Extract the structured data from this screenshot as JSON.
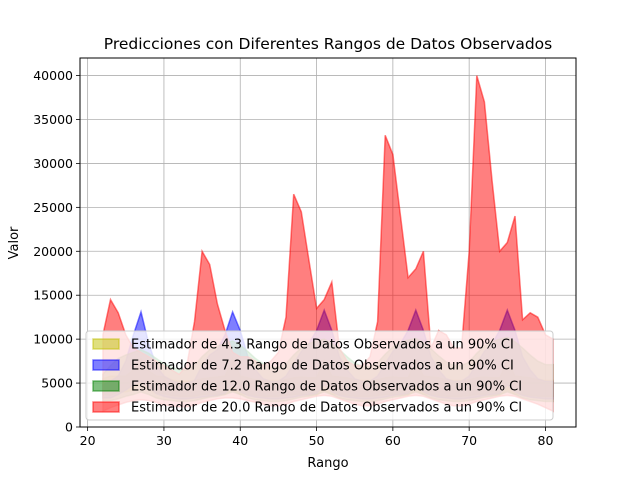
{
  "chart_data": {
    "type": "area",
    "title": "Predicciones con Diferentes Rangos de Datos Observados",
    "xlabel": "Rango",
    "ylabel": "Valor",
    "xlim": [
      19,
      84
    ],
    "ylim": [
      0,
      42000
    ],
    "xticks": [
      20,
      30,
      40,
      50,
      60,
      70,
      80
    ],
    "yticks": [
      0,
      5000,
      10000,
      15000,
      20000,
      25000,
      30000,
      35000,
      40000
    ],
    "grid": true,
    "legend_position": "lower-left",
    "x": [
      22,
      23,
      24,
      25,
      26,
      27,
      28,
      29,
      30,
      31,
      32,
      33,
      34,
      35,
      36,
      37,
      38,
      39,
      40,
      41,
      42,
      43,
      44,
      45,
      46,
      47,
      48,
      49,
      50,
      51,
      52,
      53,
      54,
      55,
      56,
      57,
      58,
      59,
      60,
      61,
      62,
      63,
      64,
      65,
      66,
      67,
      68,
      69,
      70,
      71,
      72,
      73,
      74,
      75,
      76,
      77,
      78,
      79,
      80,
      81
    ],
    "series": [
      {
        "name": "Estimador de 4.3 Rango de Datos Observados a un 90% CI",
        "color": "#bfbf00",
        "lower": [
          3700,
          3600,
          4000,
          4000,
          4200,
          5200,
          4300,
          3800,
          3800,
          3600,
          3500,
          3500,
          3500,
          3700,
          3700,
          3700,
          3700,
          4200,
          3700,
          3700,
          3600,
          3500,
          3500,
          3500,
          3600,
          3700,
          3700,
          3600,
          3600,
          4200,
          3700,
          3700,
          3600,
          3500,
          3500,
          3500,
          3600,
          3700,
          3700,
          3600,
          3600,
          4200,
          3700,
          3700,
          3600,
          3500,
          3500,
          3500,
          3600,
          3700,
          3700,
          3600,
          3600,
          4200,
          3700,
          3700,
          3600,
          3500,
          3500,
          3500
        ],
        "upper": [
          5500,
          5800,
          5800,
          5800,
          6500,
          7800,
          6400,
          5800,
          5700,
          5400,
          5200,
          5200,
          5300,
          5500,
          5600,
          5700,
          5800,
          7800,
          5800,
          5600,
          5400,
          5300,
          5300,
          5300,
          5400,
          5600,
          5700,
          5600,
          5600,
          7600,
          5800,
          5700,
          5600,
          5400,
          5300,
          5300,
          5400,
          5600,
          5700,
          5600,
          5600,
          7600,
          5800,
          5700,
          5600,
          5400,
          5300,
          5300,
          5400,
          5600,
          5700,
          5600,
          5600,
          7600,
          5800,
          5700,
          5600,
          5400,
          5300,
          5300
        ]
      },
      {
        "name": "Estimador de 7.2 Rango de Datos Observados a un 90% CI",
        "color": "#0000ff",
        "lower": [
          3300,
          3300,
          3700,
          4200,
          4800,
          5200,
          4500,
          3800,
          3500,
          3300,
          3200,
          3200,
          3300,
          3400,
          3500,
          3600,
          3800,
          4800,
          4000,
          3600,
          3400,
          3300,
          3200,
          3200,
          3300,
          3400,
          3600,
          3700,
          3800,
          4800,
          4000,
          3600,
          3400,
          3300,
          3200,
          3200,
          3300,
          3400,
          3600,
          3700,
          3800,
          4800,
          4000,
          3600,
          3400,
          3300,
          3200,
          3200,
          3300,
          3400,
          3600,
          3700,
          3800,
          4800,
          4000,
          3600,
          3400,
          3300,
          3200,
          3200
        ],
        "upper": [
          4800,
          5200,
          5800,
          7500,
          10500,
          13100,
          9500,
          7000,
          5800,
          5300,
          5000,
          5000,
          5300,
          7000,
          8200,
          8800,
          10500,
          13100,
          11000,
          8000,
          6500,
          5500,
          5200,
          5200,
          5800,
          7200,
          8600,
          9500,
          11000,
          13300,
          11000,
          8000,
          6500,
          5500,
          5200,
          5200,
          5800,
          7200,
          8600,
          9500,
          11000,
          13300,
          11000,
          8000,
          6500,
          5500,
          5200,
          5200,
          5800,
          7200,
          8600,
          9500,
          11000,
          13300,
          11000,
          8000,
          6500,
          5500,
          5200,
          5200
        ]
      },
      {
        "name": "Estimador de 12.0 Rango de Datos Observados a un 90% CI",
        "color": "#008000",
        "lower": [
          3000,
          3000,
          3200,
          3500,
          3700,
          4000,
          3700,
          3300,
          3100,
          3000,
          2900,
          2900,
          3000,
          3200,
          3400,
          3500,
          3700,
          4000,
          3700,
          3300,
          3100,
          3000,
          2900,
          2900,
          3000,
          3200,
          3400,
          3500,
          3700,
          4000,
          3700,
          3300,
          3100,
          3000,
          2900,
          2900,
          3000,
          3200,
          3400,
          3500,
          3700,
          4000,
          3700,
          3300,
          3100,
          3000,
          2900,
          2900,
          3000,
          3200,
          3400,
          3500,
          3700,
          4000,
          3700,
          3300,
          3100,
          3000,
          2900,
          2900
        ],
        "upper": [
          6000,
          7000,
          7800,
          8200,
          8500,
          8800,
          8400,
          7800,
          7200,
          6800,
          6500,
          6500,
          7000,
          8000,
          8800,
          9200,
          9500,
          9800,
          9300,
          8600,
          7800,
          7200,
          6800,
          6800,
          7200,
          8200,
          9000,
          9500,
          9800,
          10000,
          9500,
          8800,
          8000,
          7300,
          6900,
          6900,
          7300,
          8300,
          9100,
          9600,
          9900,
          10100,
          9600,
          8900,
          8100,
          7400,
          7000,
          7000,
          7400,
          8400,
          9200,
          9700,
          10000,
          10200,
          9700,
          9000,
          8200,
          7500,
          7100,
          7100
        ]
      },
      {
        "name": "Estimador de 20.0 Rango de Datos Observados a un 90% CI",
        "color": "#ff0000",
        "lower": [
          1800,
          2200,
          2500,
          2800,
          3000,
          3100,
          3000,
          2800,
          2500,
          2400,
          2300,
          2300,
          2500,
          2800,
          3000,
          3200,
          3300,
          3300,
          3200,
          3000,
          2800,
          2600,
          2400,
          2400,
          2600,
          2900,
          3100,
          3300,
          3500,
          3600,
          3500,
          3200,
          2900,
          2600,
          2400,
          2400,
          2600,
          2900,
          3100,
          3300,
          3500,
          3600,
          3500,
          3200,
          2900,
          2600,
          2400,
          2400,
          2600,
          2900,
          3100,
          3300,
          3500,
          3600,
          3500,
          3200,
          2900,
          2600,
          2200,
          1800
        ],
        "upper": [
          10500,
          14500,
          13000,
          10500,
          9000,
          8500,
          8000,
          7500,
          7000,
          6500,
          6000,
          7000,
          12000,
          20000,
          18500,
          14000,
          11000,
          8500,
          8000,
          8000,
          7500,
          7000,
          7500,
          8500,
          12500,
          26500,
          24500,
          19000,
          13500,
          14500,
          16500,
          9000,
          7500,
          7000,
          7000,
          8000,
          12000,
          33200,
          31000,
          24000,
          17000,
          18000,
          20000,
          9000,
          11000,
          10500,
          9000,
          9000,
          20000,
          40000,
          37000,
          28000,
          20000,
          21000,
          24000,
          12200,
          13000,
          12500,
          10500,
          10000
        ]
      }
    ]
  }
}
